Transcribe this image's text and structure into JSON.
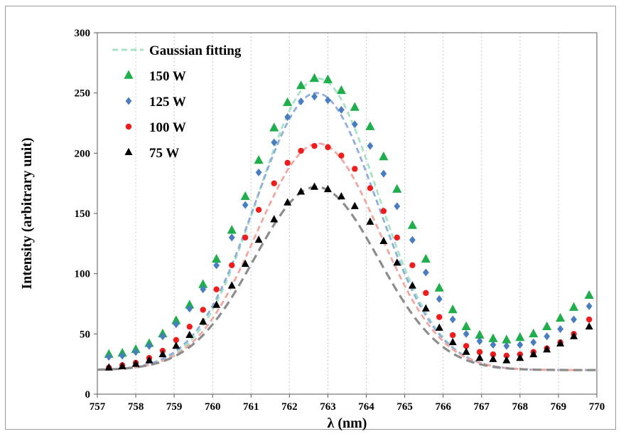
{
  "chart_data": {
    "type": "scatter",
    "title": "",
    "xlabel": "λ (nm)",
    "ylabel": "Intensity (arbitrary unit)",
    "xlim": [
      757,
      770
    ],
    "ylim": [
      0,
      300
    ],
    "xticks": [
      757,
      758,
      759,
      760,
      761,
      762,
      763,
      764,
      765,
      766,
      767,
      768,
      769,
      770
    ],
    "yticks": [
      0,
      50,
      100,
      150,
      200,
      250,
      300
    ],
    "grid": "vertical dotted",
    "legend_position": "top-left",
    "fit_label": "Gaussian fitting",
    "x": [
      757.3,
      757.65,
      758.0,
      758.35,
      758.7,
      759.05,
      759.4,
      759.75,
      760.1,
      760.5,
      760.85,
      761.2,
      761.6,
      761.95,
      762.3,
      762.65,
      763.0,
      763.35,
      763.7,
      764.1,
      764.45,
      764.8,
      765.2,
      765.55,
      765.9,
      766.25,
      766.6,
      766.95,
      767.3,
      767.65,
      768.0,
      768.35,
      768.7,
      769.05,
      769.4,
      769.8
    ],
    "series": [
      {
        "name": "150 W",
        "marker": "triangle",
        "color": "#1fae4b",
        "fit_color": "#a6e3c3",
        "values": [
          33,
          34,
          37,
          42,
          50,
          61,
          74,
          91,
          112,
          136,
          164,
          194,
          221,
          242,
          256,
          262,
          261,
          252,
          238,
          222,
          197,
          170,
          140,
          112,
          88,
          70,
          56,
          49,
          46,
          45,
          47,
          50,
          56,
          63,
          72,
          82
        ],
        "fit": {
          "amplitude": 242,
          "center": 762.75,
          "sigma": 1.55,
          "offset": 20
        }
      },
      {
        "name": "125 W",
        "marker": "diamond",
        "color": "#4a7dc0",
        "fit_color": "#8faedb",
        "values": [
          31,
          32,
          35,
          40,
          48,
          58,
          71,
          87,
          107,
          130,
          157,
          184,
          209,
          230,
          243,
          247,
          244,
          236,
          224,
          206,
          183,
          156,
          128,
          101,
          79,
          62,
          50,
          44,
          41,
          40,
          41,
          43,
          48,
          54,
          62,
          73
        ],
        "fit": {
          "amplitude": 230,
          "center": 762.7,
          "sigma": 1.58,
          "offset": 20
        }
      },
      {
        "name": "100 W",
        "marker": "circle",
        "color": "#ee1c1c",
        "fit_color": "#f2a6a0",
        "values": [
          22,
          24,
          26,
          30,
          36,
          45,
          56,
          70,
          87,
          107,
          130,
          153,
          175,
          192,
          202,
          206,
          205,
          198,
          187,
          171,
          152,
          130,
          107,
          84,
          64,
          49,
          40,
          35,
          33,
          32,
          33,
          35,
          38,
          43,
          50,
          62
        ],
        "fit": {
          "amplitude": 188,
          "center": 762.75,
          "sigma": 1.6,
          "offset": 20
        }
      },
      {
        "name": "75 W",
        "marker": "triangle",
        "color": "#000000",
        "fit_color": "#8c8c8c",
        "values": [
          22,
          23,
          25,
          28,
          33,
          40,
          49,
          60,
          74,
          90,
          108,
          128,
          145,
          159,
          168,
          172,
          170,
          164,
          156,
          143,
          127,
          109,
          90,
          71,
          55,
          43,
          35,
          30,
          29,
          28,
          30,
          33,
          37,
          42,
          48,
          56
        ],
        "fit": {
          "amplitude": 152,
          "center": 762.7,
          "sigma": 1.62,
          "offset": 20
        }
      }
    ]
  }
}
